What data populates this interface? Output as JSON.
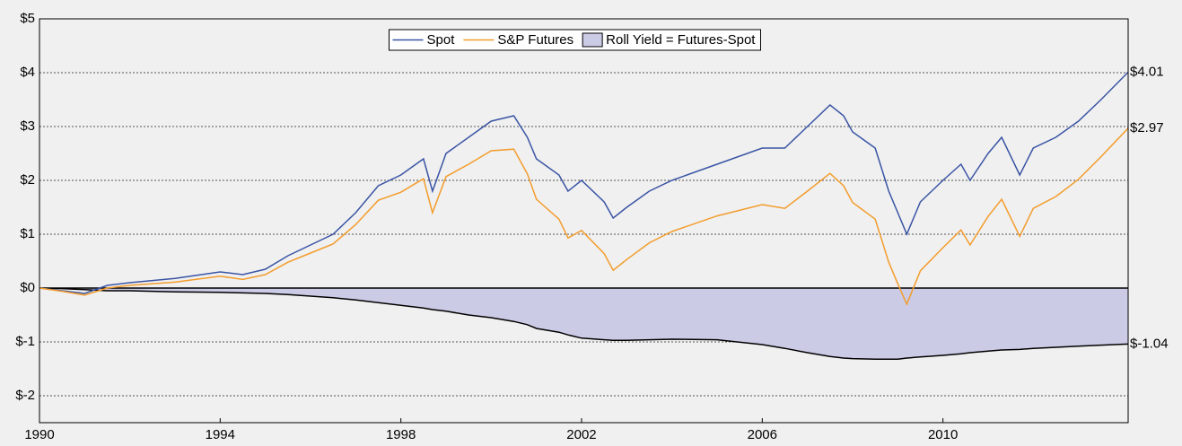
{
  "chart_data": {
    "type": "line",
    "x": [
      1990,
      1990.5,
      1991,
      1991.5,
      1992,
      1993,
      1994,
      1994.5,
      1995,
      1995.5,
      1996,
      1996.5,
      1997,
      1997.5,
      1998,
      1998.5,
      1998.7,
      1999,
      1999.5,
      2000,
      2000.5,
      2000.8,
      2001,
      2001.5,
      2001.7,
      2002,
      2002.5,
      2002.7,
      2003,
      2003.5,
      2004,
      2005,
      2006,
      2006.5,
      2007,
      2007.5,
      2007.8,
      2008,
      2008.5,
      2008.8,
      2009,
      2009.2,
      2009.5,
      2010,
      2010.4,
      2010.6,
      2011,
      2011.3,
      2011.7,
      2012,
      2012.5,
      2013,
      2013.5,
      2014.1
    ],
    "series": [
      {
        "name": "Spot",
        "color": "#3a54a4",
        "type": "line",
        "end_label": "$4.01",
        "values": [
          0,
          -0.05,
          -0.1,
          0.05,
          0.1,
          0.18,
          0.3,
          0.25,
          0.35,
          0.6,
          0.8,
          1.0,
          1.4,
          1.9,
          2.1,
          2.4,
          1.8,
          2.5,
          2.8,
          3.1,
          3.2,
          2.8,
          2.4,
          2.1,
          1.8,
          2.0,
          1.6,
          1.3,
          1.5,
          1.8,
          2.0,
          2.3,
          2.6,
          2.6,
          3.0,
          3.4,
          3.2,
          2.9,
          2.6,
          1.8,
          1.4,
          1.0,
          1.6,
          2.0,
          2.3,
          2.0,
          2.5,
          2.8,
          2.1,
          2.6,
          2.8,
          3.1,
          3.5,
          4.01
        ]
      },
      {
        "name": "S&P Futures",
        "color": "#f39c2c",
        "type": "line",
        "end_label": "$2.97",
        "values": [
          0,
          -0.06,
          -0.13,
          0,
          0.05,
          0.11,
          0.22,
          0.16,
          0.25,
          0.48,
          0.65,
          0.82,
          1.18,
          1.63,
          1.78,
          2.03,
          1.4,
          2.07,
          2.3,
          2.55,
          2.58,
          2.12,
          1.65,
          1.28,
          0.93,
          1.07,
          0.64,
          0.33,
          0.53,
          0.84,
          1.05,
          1.34,
          1.55,
          1.48,
          1.8,
          2.13,
          1.9,
          1.59,
          1.28,
          0.48,
          0.08,
          -0.3,
          0.32,
          0.75,
          1.08,
          0.8,
          1.33,
          1.65,
          0.96,
          1.48,
          1.7,
          2.02,
          2.44,
          2.97
        ]
      },
      {
        "name": "Roll Yield = Futures-Spot",
        "color": "#cbcbe6",
        "type": "area",
        "end_label": "$-1.04",
        "values": [
          0,
          -0.01,
          -0.03,
          -0.05,
          -0.05,
          -0.07,
          -0.08,
          -0.09,
          -0.1,
          -0.12,
          -0.15,
          -0.18,
          -0.22,
          -0.27,
          -0.32,
          -0.37,
          -0.4,
          -0.43,
          -0.5,
          -0.55,
          -0.62,
          -0.68,
          -0.75,
          -0.82,
          -0.87,
          -0.93,
          -0.96,
          -0.97,
          -0.97,
          -0.96,
          -0.95,
          -0.96,
          -1.05,
          -1.12,
          -1.2,
          -1.27,
          -1.3,
          -1.31,
          -1.32,
          -1.32,
          -1.32,
          -1.3,
          -1.28,
          -1.25,
          -1.22,
          -1.2,
          -1.17,
          -1.15,
          -1.14,
          -1.12,
          -1.1,
          -1.08,
          -1.06,
          -1.04
        ]
      }
    ],
    "xlim": [
      1990,
      2014.1
    ],
    "xticks": [
      1990,
      1994,
      1998,
      2002,
      2006,
      2010
    ],
    "ylim": [
      -2.5,
      5
    ],
    "yticks": [
      {
        "value": 5,
        "label": "$5"
      },
      {
        "value": 4,
        "label": "$4"
      },
      {
        "value": 3,
        "label": "$3"
      },
      {
        "value": 2,
        "label": "$2"
      },
      {
        "value": 1,
        "label": "$1"
      },
      {
        "value": 0,
        "label": "$0"
      },
      {
        "value": -1,
        "label": "$-1"
      },
      {
        "value": -2,
        "label": "$-2"
      }
    ],
    "grid": true,
    "legend": "top"
  }
}
